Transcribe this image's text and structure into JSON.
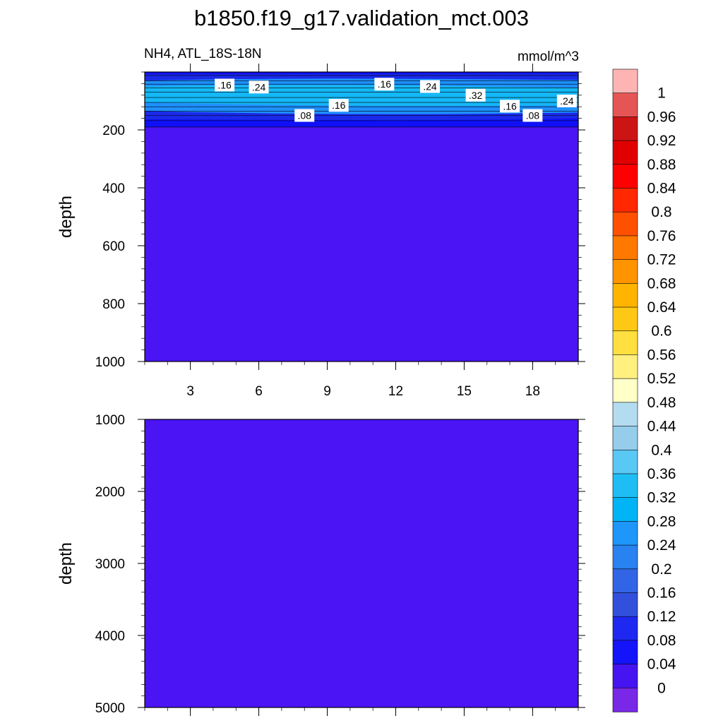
{
  "chart_data": {
    "type": "heatmap",
    "title": "b1850.f19_g17.validation_mct.003",
    "subtitle_left": "NH4, ATL_18S-18N",
    "subtitle_right": "mmol/m^3",
    "colors": {
      "background_fill": "#4a14f4",
      "band_dark": "#1010f8",
      "band_mid": "#1a2ae8",
      "band_light": "#1e90ff",
      "band_cyan": "#14b8f6"
    },
    "panels": [
      {
        "name": "upper",
        "ylabel": "depth",
        "ylim": [
          0,
          1000
        ],
        "yticks": [
          "200",
          "400",
          "600",
          "800",
          "1000"
        ],
        "xlim": [
          1,
          20
        ],
        "xticks": [
          "3",
          "6",
          "9",
          "12",
          "15",
          "18"
        ],
        "contour_labels": [
          {
            "text": ".16",
            "x": 4.5,
            "y": 45
          },
          {
            "text": ".24",
            "x": 6,
            "y": 52
          },
          {
            "text": ".16",
            "x": 11.5,
            "y": 42
          },
          {
            "text": ".24",
            "x": 13.5,
            "y": 50
          },
          {
            "text": ".32",
            "x": 15.5,
            "y": 80
          },
          {
            "text": ".16",
            "x": 17,
            "y": 118
          },
          {
            "text": ".24",
            "x": 19.5,
            "y": 100
          },
          {
            "text": ".16",
            "x": 9.5,
            "y": 115
          },
          {
            "text": ".08",
            "x": 8,
            "y": 150
          },
          {
            "text": ".08",
            "x": 18,
            "y": 150
          }
        ]
      },
      {
        "name": "lower",
        "ylabel": "depth",
        "ylim": [
          1000,
          5000
        ],
        "yticks": [
          "1000",
          "2000",
          "3000",
          "4000",
          "5000"
        ],
        "xlim": [
          1,
          20
        ],
        "xticks": []
      }
    ],
    "colorbar": {
      "labels": [
        "1",
        "0.96",
        "0.92",
        "0.88",
        "0.84",
        "0.8",
        "0.76",
        "0.72",
        "0.68",
        "0.64",
        "0.6",
        "0.56",
        "0.52",
        "0.48",
        "0.44",
        "0.4",
        "0.36",
        "0.32",
        "0.28",
        "0.24",
        "0.2",
        "0.16",
        "0.12",
        "0.08",
        "0.04",
        "0"
      ],
      "colors": [
        "#ffb4b4",
        "#e65555",
        "#cc1414",
        "#e00000",
        "#ff0000",
        "#ff2800",
        "#ff5000",
        "#ff7800",
        "#ff9400",
        "#ffb400",
        "#ffc814",
        "#ffe040",
        "#fff080",
        "#ffffc8",
        "#b4dcf0",
        "#96cdeb",
        "#5ac8f5",
        "#1ebef5",
        "#00b4f5",
        "#1e96fa",
        "#2882f0",
        "#3264e6",
        "#3250dc",
        "#1e28f0",
        "#1414fa",
        "#4614f0",
        "#7828e6"
      ]
    }
  }
}
